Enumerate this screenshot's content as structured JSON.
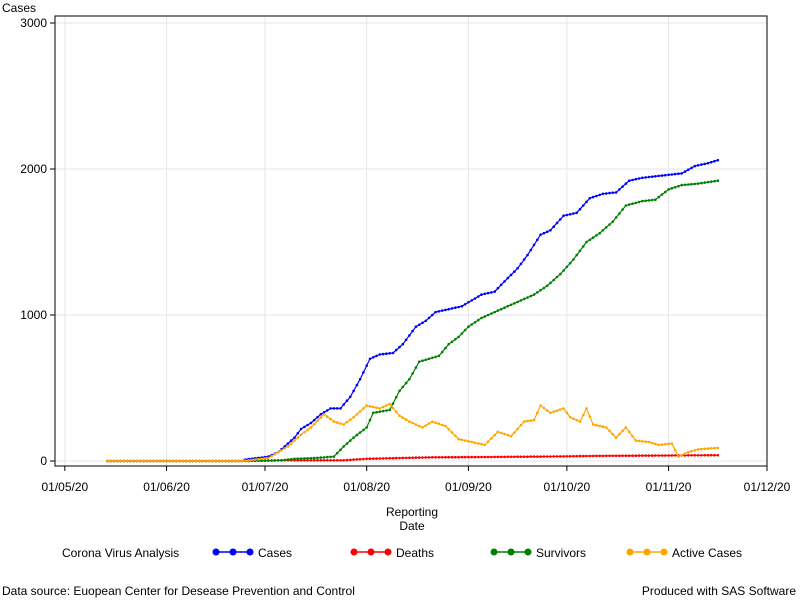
{
  "chart_data": {
    "type": "line",
    "ylabel": "Cases",
    "xlabel_lines": [
      "Reporting",
      "Date"
    ],
    "ylim": [
      0,
      3000
    ],
    "yticks": [
      0,
      1000,
      2000,
      3000
    ],
    "x_tick_labels": [
      "01/05/20",
      "01/06/20",
      "01/07/20",
      "01/08/20",
      "01/09/20",
      "01/10/20",
      "01/11/20",
      "01/12/20"
    ],
    "x_tick_dates": [
      "2020-05-01",
      "2020-06-01",
      "2020-07-01",
      "2020-08-01",
      "2020-09-01",
      "2020-10-01",
      "2020-11-01",
      "2020-12-01"
    ],
    "xlim": [
      "2020-04-28",
      "2020-12-01"
    ],
    "grid": true,
    "legend_position": "bottom",
    "legend_title": "Corona Virus Analysis",
    "series": [
      {
        "name": "Cases",
        "color": "#0000ff",
        "points": [
          [
            "2020-05-14",
            0
          ],
          [
            "2020-06-24",
            0
          ],
          [
            "2020-06-25",
            10
          ],
          [
            "2020-07-02",
            30
          ],
          [
            "2020-07-05",
            60
          ],
          [
            "2020-07-07",
            100
          ],
          [
            "2020-07-10",
            160
          ],
          [
            "2020-07-12",
            220
          ],
          [
            "2020-07-15",
            260
          ],
          [
            "2020-07-18",
            320
          ],
          [
            "2020-07-21",
            360
          ],
          [
            "2020-07-24",
            360
          ],
          [
            "2020-07-27",
            440
          ],
          [
            "2020-07-30",
            560
          ],
          [
            "2020-08-02",
            700
          ],
          [
            "2020-08-05",
            730
          ],
          [
            "2020-08-09",
            740
          ],
          [
            "2020-08-12",
            800
          ],
          [
            "2020-08-16",
            920
          ],
          [
            "2020-08-19",
            960
          ],
          [
            "2020-08-22",
            1020
          ],
          [
            "2020-08-26",
            1040
          ],
          [
            "2020-08-30",
            1060
          ],
          [
            "2020-09-02",
            1100
          ],
          [
            "2020-09-05",
            1140
          ],
          [
            "2020-09-09",
            1160
          ],
          [
            "2020-09-12",
            1230
          ],
          [
            "2020-09-16",
            1320
          ],
          [
            "2020-09-19",
            1410
          ],
          [
            "2020-09-23",
            1550
          ],
          [
            "2020-09-26",
            1580
          ],
          [
            "2020-09-30",
            1680
          ],
          [
            "2020-10-04",
            1700
          ],
          [
            "2020-10-08",
            1800
          ],
          [
            "2020-10-12",
            1830
          ],
          [
            "2020-10-16",
            1840
          ],
          [
            "2020-10-20",
            1920
          ],
          [
            "2020-10-24",
            1940
          ],
          [
            "2020-10-28",
            1950
          ],
          [
            "2020-11-01",
            1960
          ],
          [
            "2020-11-05",
            1970
          ],
          [
            "2020-11-09",
            2020
          ],
          [
            "2020-11-13",
            2040
          ],
          [
            "2020-11-16",
            2060
          ]
        ]
      },
      {
        "name": "Deaths",
        "color": "#ff0000",
        "points": [
          [
            "2020-05-14",
            0
          ],
          [
            "2020-06-24",
            0
          ],
          [
            "2020-07-08",
            5
          ],
          [
            "2020-07-25",
            5
          ],
          [
            "2020-08-01",
            15
          ],
          [
            "2020-08-10",
            20
          ],
          [
            "2020-08-20",
            25
          ],
          [
            "2020-09-10",
            28
          ],
          [
            "2020-10-01",
            32
          ],
          [
            "2020-10-10",
            35
          ],
          [
            "2020-11-01",
            38
          ],
          [
            "2020-11-16",
            40
          ]
        ]
      },
      {
        "name": "Survivors",
        "color": "#008000",
        "points": [
          [
            "2020-05-14",
            0
          ],
          [
            "2020-06-24",
            0
          ],
          [
            "2020-07-06",
            5
          ],
          [
            "2020-07-10",
            15
          ],
          [
            "2020-07-16",
            20
          ],
          [
            "2020-07-22",
            30
          ],
          [
            "2020-07-25",
            100
          ],
          [
            "2020-07-28",
            160
          ],
          [
            "2020-08-01",
            230
          ],
          [
            "2020-08-03",
            330
          ],
          [
            "2020-08-08",
            350
          ],
          [
            "2020-08-11",
            480
          ],
          [
            "2020-08-14",
            560
          ],
          [
            "2020-08-17",
            680
          ],
          [
            "2020-08-20",
            700
          ],
          [
            "2020-08-23",
            720
          ],
          [
            "2020-08-26",
            800
          ],
          [
            "2020-08-29",
            850
          ],
          [
            "2020-09-01",
            920
          ],
          [
            "2020-09-05",
            980
          ],
          [
            "2020-09-09",
            1020
          ],
          [
            "2020-09-13",
            1060
          ],
          [
            "2020-09-17",
            1100
          ],
          [
            "2020-09-21",
            1140
          ],
          [
            "2020-09-25",
            1200
          ],
          [
            "2020-09-29",
            1280
          ],
          [
            "2020-10-03",
            1380
          ],
          [
            "2020-10-07",
            1500
          ],
          [
            "2020-10-11",
            1560
          ],
          [
            "2020-10-15",
            1640
          ],
          [
            "2020-10-19",
            1750
          ],
          [
            "2020-10-24",
            1780
          ],
          [
            "2020-10-28",
            1790
          ],
          [
            "2020-11-01",
            1860
          ],
          [
            "2020-11-05",
            1890
          ],
          [
            "2020-11-10",
            1900
          ],
          [
            "2020-11-16",
            1920
          ]
        ]
      },
      {
        "name": "Active Cases",
        "color": "#ffa500",
        "points": [
          [
            "2020-05-14",
            0
          ],
          [
            "2020-06-24",
            0
          ],
          [
            "2020-07-02",
            20
          ],
          [
            "2020-07-05",
            60
          ],
          [
            "2020-07-08",
            100
          ],
          [
            "2020-07-12",
            180
          ],
          [
            "2020-07-15",
            230
          ],
          [
            "2020-07-19",
            320
          ],
          [
            "2020-07-22",
            270
          ],
          [
            "2020-07-25",
            250
          ],
          [
            "2020-07-28",
            300
          ],
          [
            "2020-08-01",
            380
          ],
          [
            "2020-08-05",
            360
          ],
          [
            "2020-08-08",
            390
          ],
          [
            "2020-08-11",
            310
          ],
          [
            "2020-08-14",
            270
          ],
          [
            "2020-08-18",
            230
          ],
          [
            "2020-08-21",
            270
          ],
          [
            "2020-08-25",
            240
          ],
          [
            "2020-08-29",
            150
          ],
          [
            "2020-09-02",
            130
          ],
          [
            "2020-09-06",
            110
          ],
          [
            "2020-09-10",
            200
          ],
          [
            "2020-09-14",
            170
          ],
          [
            "2020-09-18",
            270
          ],
          [
            "2020-09-21",
            280
          ],
          [
            "2020-09-23",
            380
          ],
          [
            "2020-09-26",
            330
          ],
          [
            "2020-09-30",
            360
          ],
          [
            "2020-10-02",
            300
          ],
          [
            "2020-10-05",
            270
          ],
          [
            "2020-10-07",
            360
          ],
          [
            "2020-10-09",
            250
          ],
          [
            "2020-10-13",
            230
          ],
          [
            "2020-10-16",
            160
          ],
          [
            "2020-10-19",
            230
          ],
          [
            "2020-10-22",
            140
          ],
          [
            "2020-10-26",
            130
          ],
          [
            "2020-10-29",
            110
          ],
          [
            "2020-11-02",
            120
          ],
          [
            "2020-11-04",
            30
          ],
          [
            "2020-11-07",
            60
          ],
          [
            "2020-11-10",
            80
          ],
          [
            "2020-11-16",
            90
          ]
        ]
      }
    ]
  },
  "footer": {
    "left": "Data source: Euopean Center for Desease Prevention and Control",
    "right": "Produced with SAS Software"
  }
}
